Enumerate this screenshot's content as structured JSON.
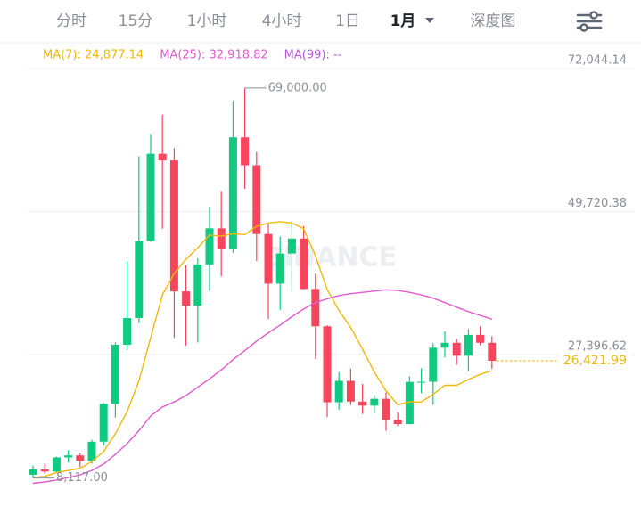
{
  "tabs": [
    "分时",
    "15分",
    "1小时",
    "4小时",
    "1日",
    "1月",
    "深度图"
  ],
  "active_tab": 5,
  "chart_data": {
    "type": "candlestick",
    "watermark": "BINANCE",
    "ma_legend": [
      {
        "text": "MA(7): 24,877.14",
        "color": "#f0b90b"
      },
      {
        "text": "MA(25): 32,918.82",
        "color": "#e05bd0"
      },
      {
        "text": "MA(99): --",
        "color": "#b659e0"
      }
    ],
    "ylim": [
      4860,
      75800
    ],
    "yticks": [
      {
        "value": 72044.14,
        "label": "72,044.14"
      },
      {
        "value": 49720.38,
        "label": "49,720.38"
      },
      {
        "value": 27396.62,
        "label": "27,396.62"
      }
    ],
    "grid": true,
    "up_color": "#0ecb81",
    "down_color": "#f6465d",
    "ohlc": [
      [
        8624,
        10067,
        8117,
        9448
      ],
      [
        9448,
        10380,
        8833,
        9138
      ],
      [
        9138,
        11444,
        8893,
        11335
      ],
      [
        11335,
        12468,
        10518,
        11649
      ],
      [
        11650,
        12050,
        9825,
        10776
      ],
      [
        10776,
        14100,
        10374,
        13791
      ],
      [
        13791,
        19863,
        13195,
        19695
      ],
      [
        19695,
        29300,
        17572,
        28923
      ],
      [
        28924,
        41950,
        28130,
        33092
      ],
      [
        33093,
        58352,
        32296,
        45135
      ],
      [
        45134,
        61844,
        45000,
        58740
      ],
      [
        58740,
        64854,
        47044,
        57694
      ],
      [
        57697,
        59600,
        30000,
        37253
      ],
      [
        37254,
        41330,
        28805,
        35045
      ],
      [
        35045,
        42448,
        29278,
        41461
      ],
      [
        41461,
        50500,
        37332,
        47100
      ],
      [
        47100,
        52920,
        39600,
        43824
      ],
      [
        43820,
        67000,
        43283,
        61300
      ],
      [
        61300,
        69000,
        53256,
        56950
      ],
      [
        56950,
        59053,
        42000,
        46216
      ],
      [
        46217,
        47990,
        32917,
        38466
      ],
      [
        38466,
        45821,
        34323,
        43160
      ],
      [
        43161,
        48190,
        37155,
        45510
      ],
      [
        45510,
        47444,
        37578,
        37630
      ],
      [
        37631,
        40023,
        26700,
        31801
      ],
      [
        31801,
        31982,
        17622,
        19942
      ],
      [
        19942,
        24668,
        18781,
        23293
      ],
      [
        23297,
        25212,
        19520,
        20050
      ],
      [
        20048,
        22800,
        18125,
        19423
      ],
      [
        19423,
        21085,
        18190,
        20490
      ],
      [
        20491,
        21480,
        15476,
        17163
      ],
      [
        17165,
        18388,
        16256,
        16542
      ],
      [
        16542,
        23960,
        16499,
        23125
      ],
      [
        23125,
        25250,
        21351,
        23141
      ],
      [
        23141,
        29184,
        19549,
        28465
      ],
      [
        28465,
        31000,
        26942,
        29233
      ],
      [
        29233,
        29820,
        25811,
        27210
      ],
      [
        27211,
        31390,
        24800,
        30472
      ],
      [
        30471,
        31804,
        28862,
        29232
      ],
      [
        29232,
        30244,
        25166,
        26422
      ]
    ],
    "ma_series": [
      {
        "name": "MA(7)",
        "color": "#f0b90b",
        "values": [
          8156,
          8383,
          8975,
          9303,
          9625,
          10680,
          12262,
          15044,
          18466,
          23294,
          30022,
          36724,
          40076,
          42269,
          44060,
          46061,
          45874,
          46240,
          46133,
          47414,
          47902,
          48145,
          47918,
          47033,
          42819,
          37532,
          34257,
          31627,
          28236,
          24661,
          21737,
          19558,
          20012,
          19991,
          21193,
          22600,
          22600,
          23500,
          24300,
          24877
        ]
      },
      {
        "name": "MA(25)",
        "color": "#e05bd0",
        "values": [
          7300,
          7500,
          7800,
          8200,
          8600,
          9300,
          10300,
          11800,
          13500,
          15500,
          17800,
          19200,
          20000,
          21000,
          22300,
          23600,
          25000,
          26600,
          28000,
          29500,
          30800,
          32000,
          33300,
          34500,
          35500,
          36100,
          36600,
          36900,
          37100,
          37300,
          37500,
          37400,
          37100,
          36700,
          36200,
          35500,
          34800,
          34100,
          33500,
          32919
        ]
      }
    ],
    "high_marker": {
      "value": 69000,
      "label": "69,000.00",
      "index": 18
    },
    "low_marker": {
      "value": 8117,
      "label": "8,117.00",
      "index": 0
    },
    "last_price": {
      "value": 26421.99,
      "label": "26,421.99",
      "color": "#f0b90b"
    }
  }
}
